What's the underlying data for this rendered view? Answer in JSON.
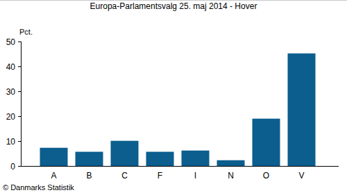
{
  "chart_data": {
    "type": "bar",
    "title": "Europa-Parlamentsvalg 25. maj 2014 - Hover",
    "y_label": "Pct.",
    "categories": [
      "A",
      "B",
      "C",
      "F",
      "I",
      "N",
      "O",
      "V"
    ],
    "values": [
      7.3,
      5.7,
      10.1,
      5.7,
      6.2,
      2.3,
      19.0,
      45.2
    ],
    "color": "#0b5e8e",
    "ylim": [
      0,
      50
    ],
    "yticks": [
      0,
      10,
      20,
      30,
      40,
      50
    ],
    "grid": false,
    "source": "© Danmarks Statistik"
  }
}
